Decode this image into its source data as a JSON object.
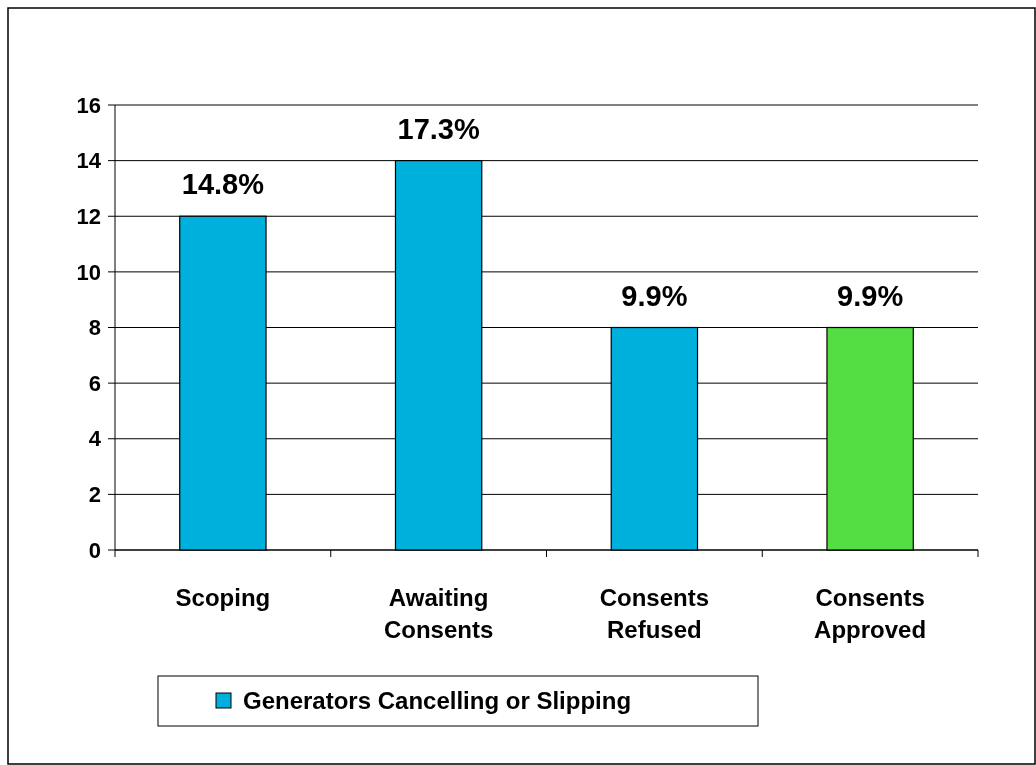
{
  "chart_data": {
    "type": "bar",
    "categories": [
      "Scoping",
      "Awaiting Consents",
      "Consents Refused",
      "Consents Approved"
    ],
    "series": [
      {
        "name": "Generators Cancelling or Slipping",
        "color": "#00b0dc",
        "colors": [
          "#00b0dc",
          "#00b0dc",
          "#00b0dc",
          "#55dd44"
        ],
        "values": [
          12,
          14,
          8,
          8
        ]
      }
    ],
    "annotations": [
      {
        "text": "14.8%",
        "x": "Scoping",
        "y": 12
      },
      {
        "text": "17.3%",
        "x": "Awaiting Consents",
        "y": 14
      },
      {
        "text": "9.9%",
        "x": "Consents Refused",
        "y": 8
      },
      {
        "text": "9.9%",
        "x": "Consents Approved",
        "y": 8
      }
    ],
    "ylim": [
      0,
      16
    ],
    "yticks": [
      0,
      2,
      4,
      6,
      8,
      10,
      12,
      14,
      16
    ],
    "grid": "y",
    "legend": "bottom"
  }
}
